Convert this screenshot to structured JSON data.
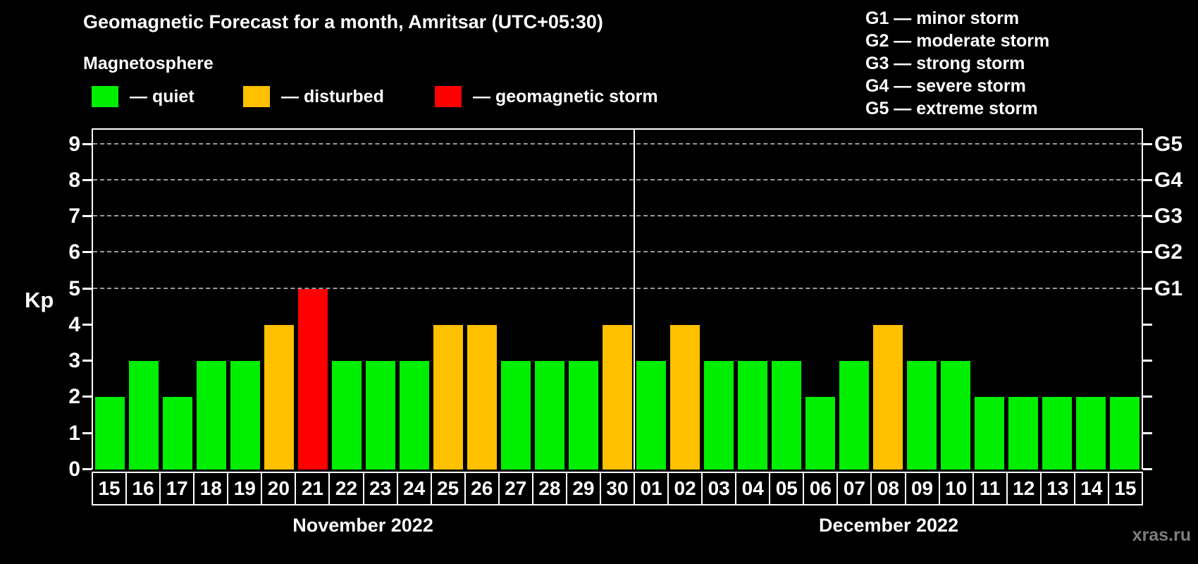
{
  "title": "Geomagnetic Forecast for a month, Amritsar (UTC+05:30)",
  "subtitle": "Magnetosphere",
  "legend": {
    "quiet": {
      "label": "— quiet",
      "color": "#00ee00"
    },
    "disturbed": {
      "label": "— disturbed",
      "color": "#ffc000"
    },
    "storm": {
      "label": "— geomagnetic storm",
      "color": "#ff0000"
    }
  },
  "storm_scale": [
    {
      "code": "G1",
      "label": "G1 — minor storm",
      "kp": 5
    },
    {
      "code": "G2",
      "label": "G2 — moderate storm",
      "kp": 6
    },
    {
      "code": "G3",
      "label": "G3 — strong storm",
      "kp": 7
    },
    {
      "code": "G4",
      "label": "G4 — severe storm",
      "kp": 8
    },
    {
      "code": "G5",
      "label": "G5 — extreme storm",
      "kp": 9
    }
  ],
  "chart_data": {
    "type": "bar",
    "title": "Geomagnetic Forecast for a month, Amritsar (UTC+05:30)",
    "ylabel": "Kp",
    "ylim": [
      0,
      9.4
    ],
    "yticks": [
      0,
      1,
      2,
      3,
      4,
      5,
      6,
      7,
      8,
      9
    ],
    "gridlines_kp": [
      5,
      6,
      7,
      8,
      9
    ],
    "right_axis_labels": [
      {
        "label": "G1",
        "kp": 5
      },
      {
        "label": "G2",
        "kp": 6
      },
      {
        "label": "G3",
        "kp": 7
      },
      {
        "label": "G4",
        "kp": 8
      },
      {
        "label": "G5",
        "kp": 9
      }
    ],
    "grid": "dashed-horizontal-at-storm-levels",
    "legend_position": "top-left",
    "months": [
      {
        "label": "November 2022",
        "days": 16
      },
      {
        "label": "December 2022",
        "days": 15
      }
    ],
    "categories": [
      "15",
      "16",
      "17",
      "18",
      "19",
      "20",
      "21",
      "22",
      "23",
      "24",
      "25",
      "26",
      "27",
      "28",
      "29",
      "30",
      "01",
      "02",
      "03",
      "04",
      "05",
      "06",
      "07",
      "08",
      "09",
      "10",
      "11",
      "12",
      "13",
      "14",
      "15"
    ],
    "values": [
      2,
      3,
      2,
      3,
      3,
      4,
      5,
      3,
      3,
      3,
      4,
      4,
      3,
      3,
      3,
      4,
      3,
      4,
      3,
      3,
      3,
      2,
      3,
      4,
      3,
      3,
      2,
      2,
      2,
      2,
      2
    ],
    "statuses": [
      "quiet",
      "quiet",
      "quiet",
      "quiet",
      "quiet",
      "disturbed",
      "storm",
      "quiet",
      "quiet",
      "quiet",
      "disturbed",
      "disturbed",
      "quiet",
      "quiet",
      "quiet",
      "disturbed",
      "quiet",
      "disturbed",
      "quiet",
      "quiet",
      "quiet",
      "quiet",
      "quiet",
      "disturbed",
      "quiet",
      "quiet",
      "quiet",
      "quiet",
      "quiet",
      "quiet",
      "quiet"
    ]
  },
  "watermark": "xras.ru"
}
